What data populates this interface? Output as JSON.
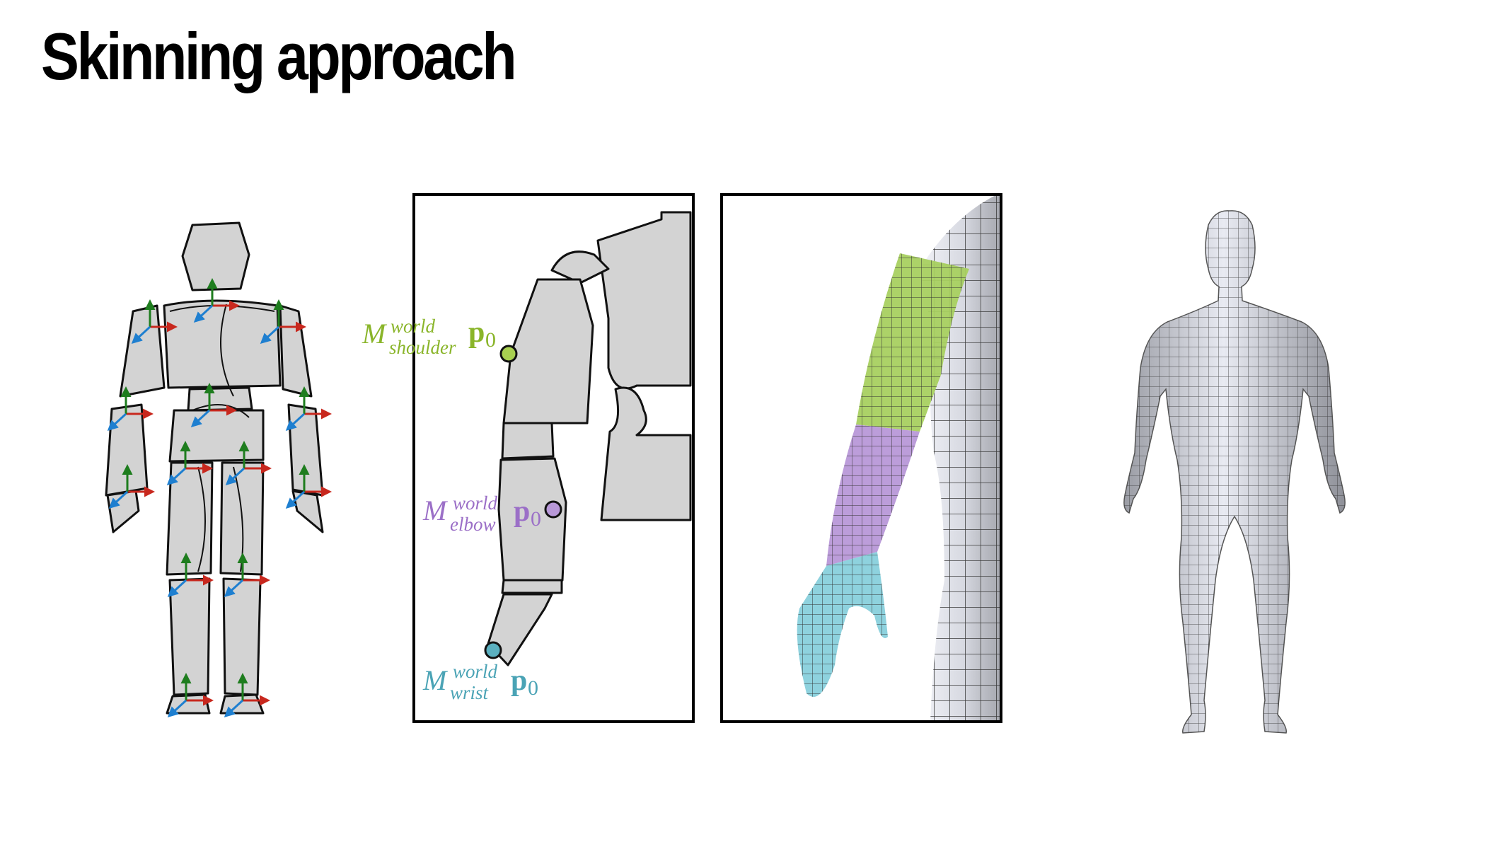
{
  "title": "Skinning approach",
  "labels": {
    "shoulder": {
      "symbol": "M",
      "superscript": "world",
      "subscript": "shoulder",
      "point": "p",
      "point_sub": "0",
      "color": "#8ab52a"
    },
    "elbow": {
      "symbol": "M",
      "superscript": "world",
      "subscript": "elbow",
      "point": "p",
      "point_sub": "0",
      "color": "#9b6fc7"
    },
    "wrist": {
      "symbol": "M",
      "superscript": "world",
      "subscript": "wrist",
      "point": "p",
      "point_sub": "0",
      "color": "#4aa3b5"
    }
  },
  "colors": {
    "bone_fill": "#d3d3d3",
    "axis_x": "#c8281e",
    "axis_y": "#1e7d1e",
    "axis_z": "#1e7fd0",
    "region_shoulder": "#a8d060",
    "region_elbow": "#b898d8",
    "region_wrist": "#88d0dc",
    "mesh_fill": "#e4e6ee",
    "mesh_line": "#3a3a3a"
  },
  "panels": [
    "skeleton-rig",
    "arm-rig-closeup",
    "skinned-arm-mesh",
    "full-body-mesh"
  ]
}
